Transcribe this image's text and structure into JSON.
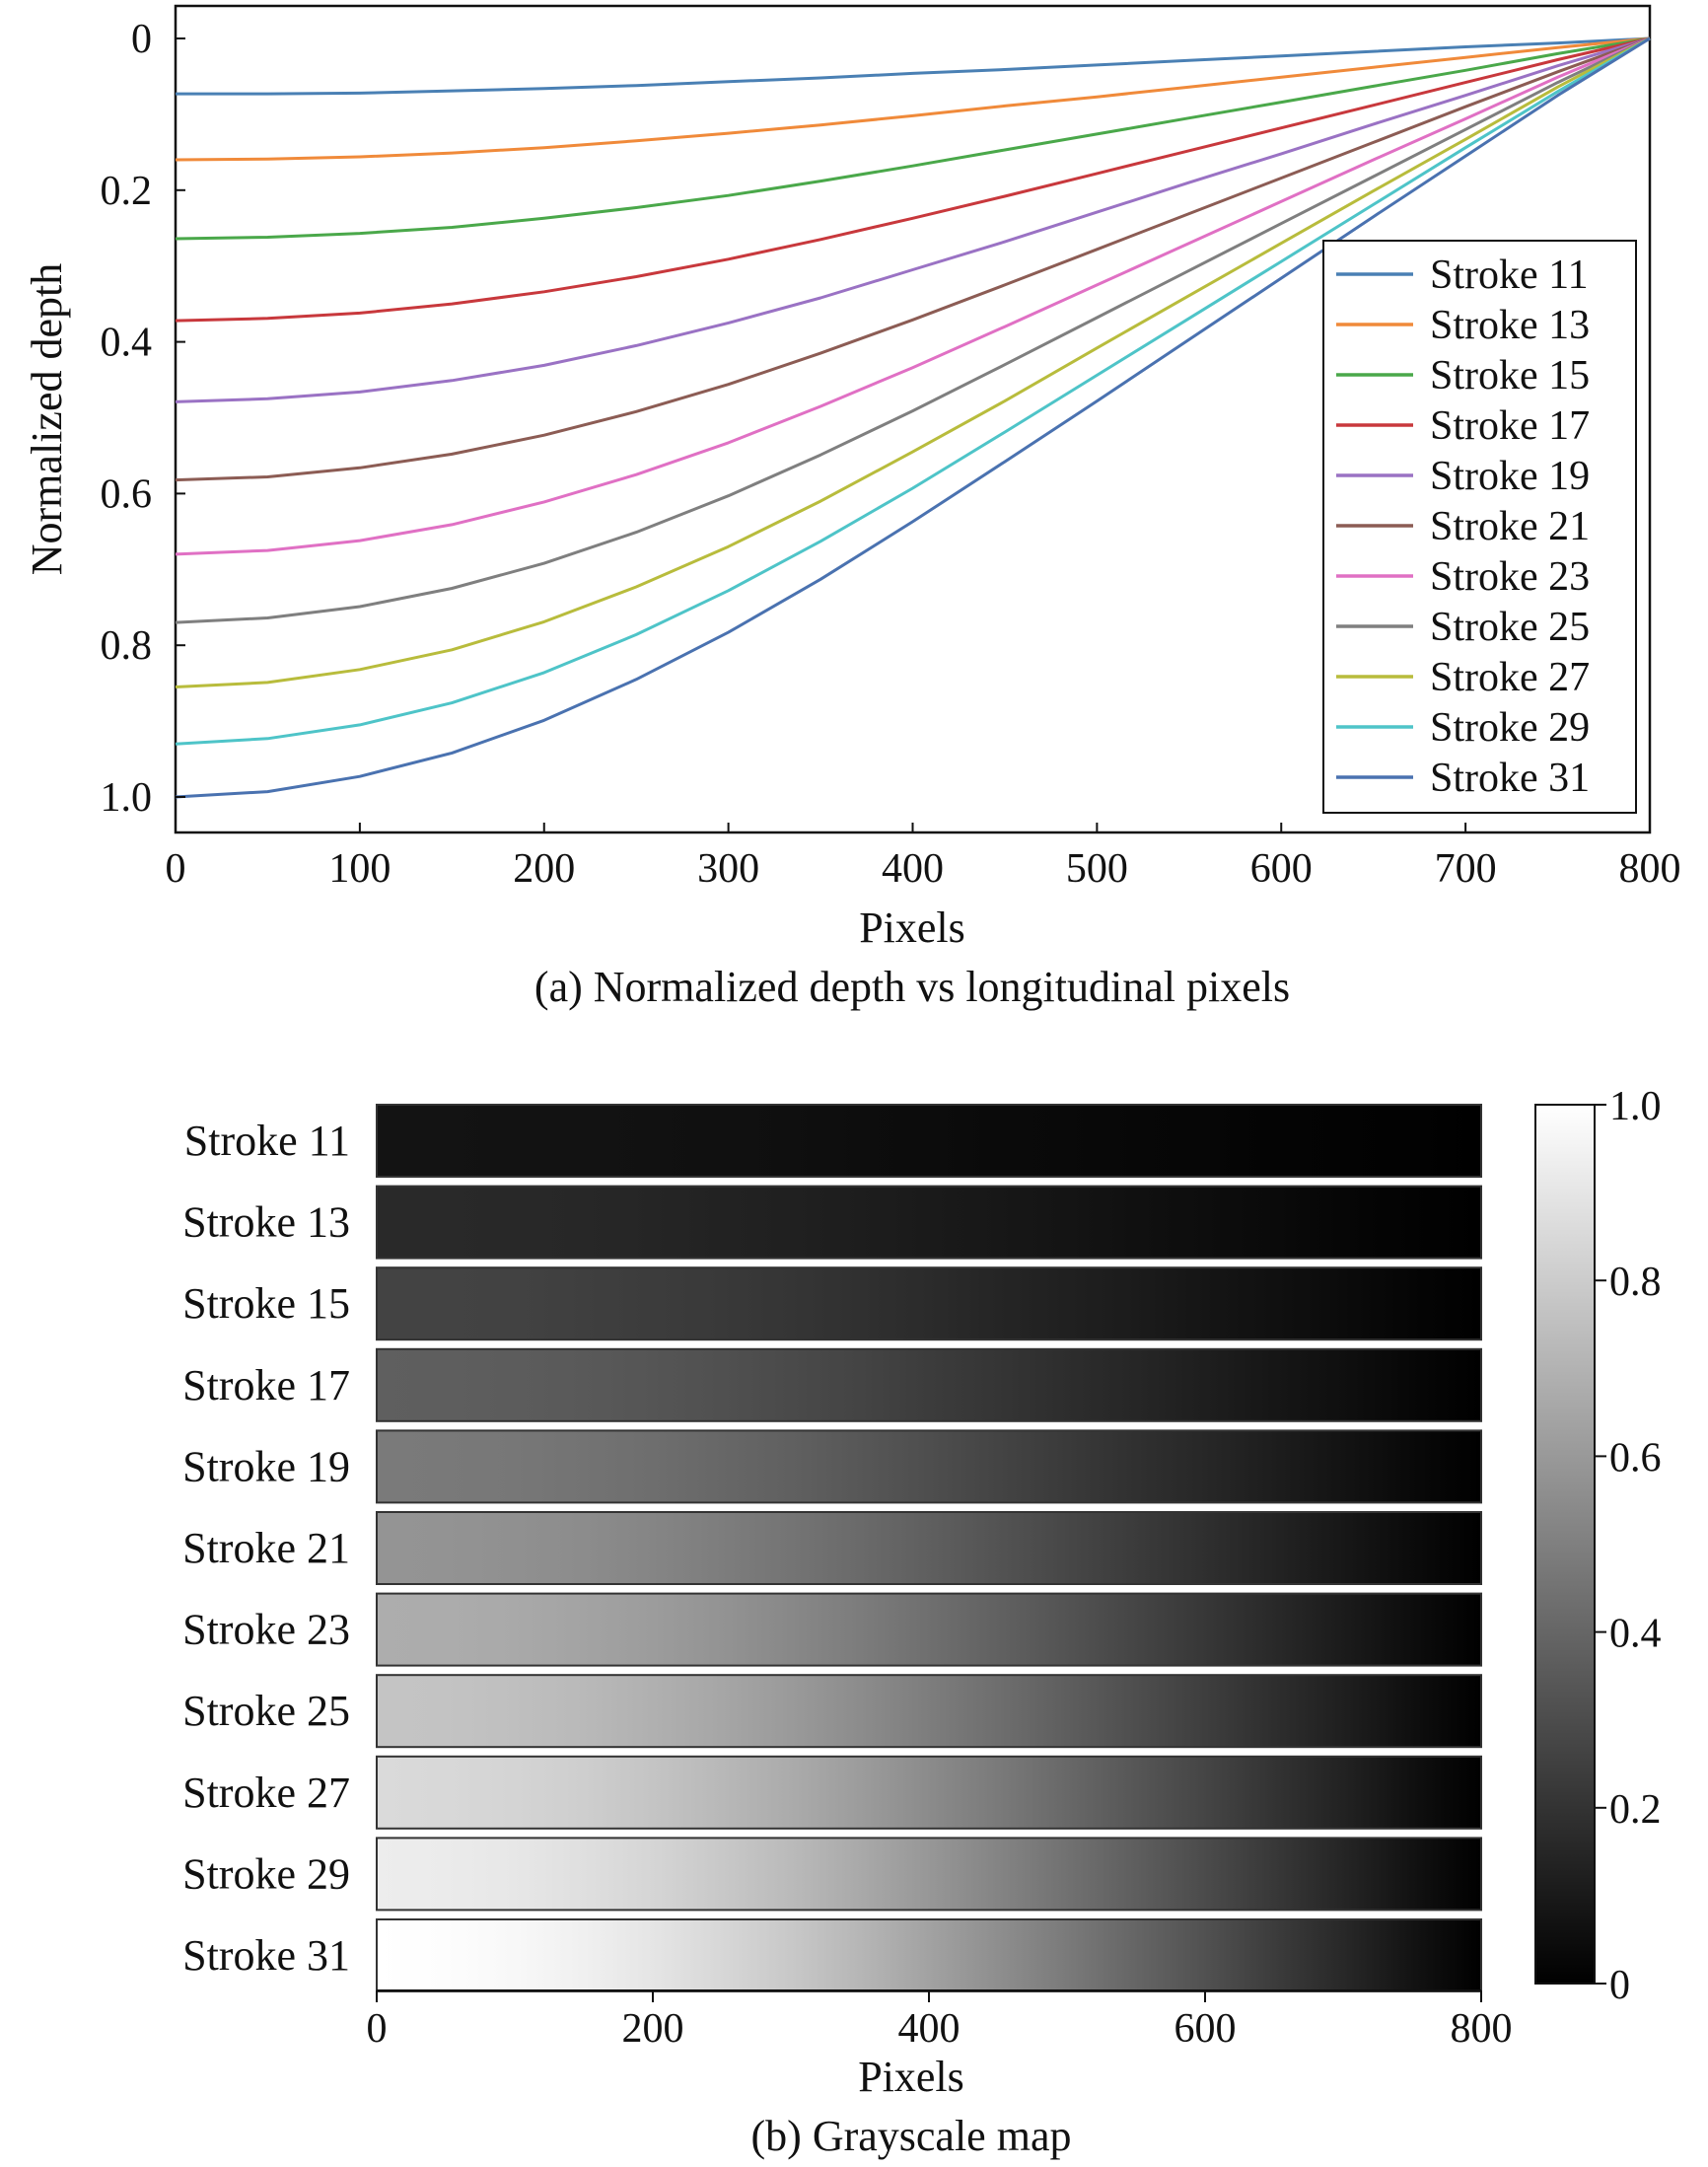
{
  "chart_data": [
    {
      "type": "line",
      "title": "(a) Normalized depth vs longitudinal pixels",
      "xlabel": "Pixels",
      "ylabel": "Normalized depth",
      "xlim": [
        0,
        800
      ],
      "ylim": [
        1.05,
        0
      ],
      "y_inverted": true,
      "xticks": [
        "0",
        "100",
        "200",
        "300",
        "400",
        "500",
        "600",
        "700",
        "800"
      ],
      "yticks": [
        "0",
        "0.2",
        "0.4",
        "0.6",
        "0.8",
        "1.0"
      ],
      "legend": "right",
      "grid": false,
      "x": [
        0,
        50,
        100,
        150,
        200,
        250,
        300,
        350,
        400,
        450,
        500,
        550,
        600,
        650,
        700,
        750,
        800
      ],
      "series": [
        {
          "name": "Stroke 11",
          "color": "#4a80b4",
          "values": [
            0.073,
            0.073,
            0.072,
            0.069,
            0.066,
            0.062,
            0.057,
            0.052,
            0.046,
            0.041,
            0.035,
            0.029,
            0.023,
            0.017,
            0.011,
            0.006,
            0.0
          ]
        },
        {
          "name": "Stroke 13",
          "color": "#f08a3a",
          "values": [
            0.16,
            0.159,
            0.156,
            0.151,
            0.144,
            0.135,
            0.125,
            0.114,
            0.102,
            0.089,
            0.077,
            0.064,
            0.051,
            0.038,
            0.025,
            0.012,
            0.0
          ]
        },
        {
          "name": "Stroke 15",
          "color": "#4aa84a",
          "values": [
            0.264,
            0.262,
            0.257,
            0.249,
            0.237,
            0.223,
            0.207,
            0.188,
            0.168,
            0.147,
            0.126,
            0.105,
            0.084,
            0.063,
            0.042,
            0.02,
            0.0
          ]
        },
        {
          "name": "Stroke 17",
          "color": "#c8383c",
          "values": [
            0.372,
            0.369,
            0.362,
            0.35,
            0.334,
            0.314,
            0.291,
            0.265,
            0.237,
            0.208,
            0.178,
            0.148,
            0.118,
            0.088,
            0.058,
            0.028,
            0.0
          ]
        },
        {
          "name": "Stroke 19",
          "color": "#9a72c4",
          "values": [
            0.479,
            0.475,
            0.466,
            0.451,
            0.431,
            0.405,
            0.375,
            0.342,
            0.305,
            0.268,
            0.229,
            0.19,
            0.152,
            0.113,
            0.075,
            0.036,
            0.0
          ]
        },
        {
          "name": "Stroke 21",
          "color": "#8c5c54",
          "values": [
            0.582,
            0.578,
            0.566,
            0.548,
            0.523,
            0.492,
            0.456,
            0.415,
            0.371,
            0.325,
            0.278,
            0.231,
            0.184,
            0.137,
            0.09,
            0.044,
            0.0
          ]
        },
        {
          "name": "Stroke 23",
          "color": "#e070c4",
          "values": [
            0.68,
            0.675,
            0.662,
            0.641,
            0.611,
            0.575,
            0.533,
            0.485,
            0.434,
            0.38,
            0.325,
            0.27,
            0.215,
            0.16,
            0.106,
            0.051,
            0.0
          ]
        },
        {
          "name": "Stroke 25",
          "color": "#7f7f7f",
          "values": [
            0.77,
            0.764,
            0.749,
            0.725,
            0.692,
            0.651,
            0.603,
            0.549,
            0.491,
            0.43,
            0.368,
            0.306,
            0.244,
            0.182,
            0.12,
            0.058,
            0.0
          ]
        },
        {
          "name": "Stroke 27",
          "color": "#b8bc3c",
          "values": [
            0.855,
            0.849,
            0.832,
            0.806,
            0.769,
            0.723,
            0.67,
            0.61,
            0.545,
            0.478,
            0.408,
            0.339,
            0.27,
            0.201,
            0.133,
            0.064,
            0.0
          ]
        },
        {
          "name": "Stroke 29",
          "color": "#4ec4c8",
          "values": [
            0.93,
            0.923,
            0.905,
            0.876,
            0.836,
            0.786,
            0.728,
            0.663,
            0.593,
            0.519,
            0.444,
            0.369,
            0.294,
            0.219,
            0.144,
            0.07,
            0.0
          ]
        },
        {
          "name": "Stroke 31",
          "color": "#4a72b0",
          "values": [
            1.0,
            0.993,
            0.973,
            0.942,
            0.899,
            0.845,
            0.783,
            0.713,
            0.637,
            0.558,
            0.478,
            0.397,
            0.316,
            0.235,
            0.155,
            0.075,
            0.0
          ]
        }
      ]
    },
    {
      "type": "heatmap",
      "title": "(b) Grayscale map",
      "xlabel": "Pixels",
      "xlim": [
        0,
        800
      ],
      "xticks": [
        "0",
        "200",
        "400",
        "600",
        "800"
      ],
      "rows": [
        "Stroke 11",
        "Stroke 13",
        "Stroke 15",
        "Stroke 17",
        "Stroke 19",
        "Stroke 21",
        "Stroke 23",
        "Stroke 25",
        "Stroke 27",
        "Stroke 29",
        "Stroke 31"
      ],
      "colormap": "gray",
      "colorbar_ticks": [
        "1.0",
        "0.8",
        "0.6",
        "0.4",
        "0.2",
        "0"
      ],
      "colorbar_range": [
        0,
        1
      ]
    }
  ]
}
